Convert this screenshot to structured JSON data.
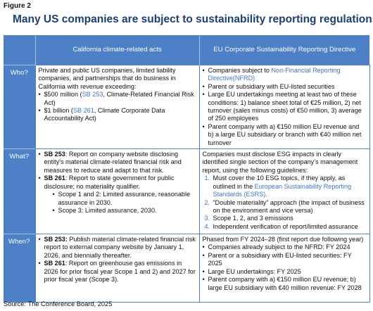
{
  "figure_label": "Figure 2",
  "title": "Many US companies are subject to sustainability reporting regulations",
  "table": {
    "columns": [
      "California climate-related acts",
      "EU Corporate Sustainability Reporting Directive"
    ],
    "rows": [
      {
        "label": "Who?",
        "cells": [
          [
            {
              "segments": [
                {
                  "text": "Private and public US companies, limited liability companies, and partnerships that do business in California with revenue exceeding:"
                }
              ]
            },
            {
              "marker": "•",
              "segments": [
                {
                  "text": "$500 million ("
                },
                {
                  "text": "SB 253",
                  "link": true
                },
                {
                  "text": ", Climate-Related Financial Risk Act)"
                }
              ]
            },
            {
              "marker": "•",
              "segments": [
                {
                  "text": "$1 billion ("
                },
                {
                  "text": "SB 261",
                  "link": true
                },
                {
                  "text": ", Climate Corporate Data Accountability Act)"
                }
              ]
            }
          ],
          [
            {
              "marker": "•",
              "segments": [
                {
                  "text": "Companies subject to "
                },
                {
                  "text": "Non-Financial Reporting Directive(NFRD)",
                  "link": true
                }
              ]
            },
            {
              "marker": "•",
              "segments": [
                {
                  "text": "Parent or subsidiary with EU-listed securities"
                }
              ]
            },
            {
              "marker": "•",
              "segments": [
                {
                  "text": "Large EU undertakings meeting at least two of these conditions: 1) balance sheet total of €25 million, 2) net turnover (sales minus costs) of €50 million, 3) average of 250 employees"
                }
              ]
            },
            {
              "marker": "•",
              "segments": [
                {
                  "text": "Parent company with a) €150 million EU revenue and b) a large EU subsidiary or branch with €40 million net turnover"
                }
              ]
            }
          ]
        ]
      },
      {
        "label": "What?",
        "cells": [
          [
            {
              "marker": "•",
              "segments": [
                {
                  "text": "SB 253",
                  "bold": true
                },
                {
                  "text": ": Report on company website disclosing entity's material climate-related financial risk and measures to reduce and adapt to that risk."
                }
              ]
            },
            {
              "marker": "•",
              "segments": [
                {
                  "text": "SB 261",
                  "bold": true
                },
                {
                  "text": ": Report to state government for public disclosure; no materiality qualifier."
                }
              ],
              "children": [
                {
                  "marker": "•",
                  "segments": [
                    {
                      "text": "Scope 1 and 2: Limited assurance, reasonable assurance in 2030."
                    }
                  ]
                },
                {
                  "marker": "•",
                  "segments": [
                    {
                      "text": "Scope 3: Limited assurance, 2030."
                    }
                  ]
                }
              ]
            }
          ],
          [
            {
              "segments": [
                {
                  "text": "Companies must disclose ESG impacts in clearly identified single section of the company’s management report, using the following guidelines:"
                }
              ]
            },
            {
              "marker": "1.",
              "segments": [
                {
                  "text": "Must cover the 10 ESG topics, if they apply, as outlined in the "
                },
                {
                  "text": "European Sustainability Reporting Standards (ESRS).",
                  "link": true
                }
              ]
            },
            {
              "marker": "2.",
              "segments": [
                {
                  "text": "“Double materiality” approach (the impact of business on the environment and vice versa)"
                }
              ]
            },
            {
              "marker": "3.",
              "segments": [
                {
                  "text": "Scope 1, 2, and 3 emissions"
                }
              ]
            },
            {
              "marker": "4.",
              "segments": [
                {
                  "text": "Independent verification of report/limited assurance"
                }
              ]
            }
          ]
        ]
      },
      {
        "label": "When?",
        "cells": [
          [
            {
              "marker": "•",
              "segments": [
                {
                  "text": "SB 253:",
                  "bold": true
                },
                {
                  "text": " Publish material climate-related financial risk report to external company website by January 1, 2026, and biennially thereafter."
                }
              ]
            },
            {
              "marker": "•",
              "segments": [
                {
                  "text": "SB 261",
                  "bold": true
                },
                {
                  "text": ": Report on greenhouse gas emissions in 2026 for prior fiscal year Scope 1 and 2) and 2027 for prior fiscal year (Scope 3)."
                }
              ]
            }
          ],
          [
            {
              "segments": [
                {
                  "text": "Phased from FY 2024–28 (first report due following year)"
                }
              ]
            },
            {
              "marker": "•",
              "segments": [
                {
                  "text": "Companies already subject to the NFRD: FY 2024"
                }
              ]
            },
            {
              "marker": "•",
              "segments": [
                {
                  "text": "Parent or a subsidiary with EU-listed securities: FY 2025"
                }
              ]
            },
            {
              "marker": "•",
              "segments": [
                {
                  "text": "Large EU undertakings: FY 2025"
                }
              ]
            },
            {
              "marker": "•",
              "segments": [
                {
                  "text": "Parent company with a) €150 million EU revenue; b) large EU subsidiary with €40 million revenue: FY 2028"
                }
              ]
            }
          ]
        ]
      }
    ]
  },
  "source": "Source: The Conference Board, 2025"
}
